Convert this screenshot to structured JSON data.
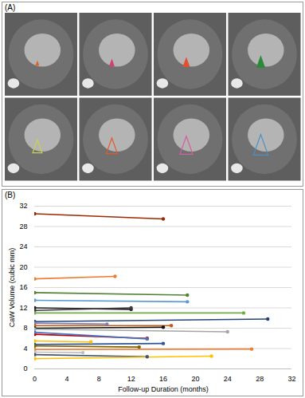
{
  "figure": {
    "panel_a_label": "(A)",
    "panel_b_label": "(B)"
  },
  "chart_data": {
    "type": "line",
    "x_label": "Follow-up Duration (months)",
    "y_label": "CaW Volume (cubic mm)",
    "xlim": [
      0,
      32
    ],
    "xticks": [
      0,
      4,
      8,
      12,
      16,
      20,
      24,
      28,
      32
    ],
    "ylim": [
      0,
      32
    ],
    "yticks": [
      0,
      4,
      8,
      12,
      16,
      20,
      24,
      28,
      32
    ],
    "grid": true,
    "marker": "circle",
    "series": [
      {
        "color": "#9c2a00",
        "x": [
          0,
          16
        ],
        "values": [
          30.5,
          29.5
        ]
      },
      {
        "color": "#ed7d31",
        "x": [
          0,
          10
        ],
        "values": [
          17.7,
          18.2
        ]
      },
      {
        "color": "#548235",
        "x": [
          0,
          19
        ],
        "values": [
          15.0,
          14.5
        ]
      },
      {
        "color": "#5b9bd5",
        "x": [
          0,
          19
        ],
        "values": [
          13.5,
          13.2
        ]
      },
      {
        "color": "#222222",
        "x": [
          0,
          12
        ],
        "values": [
          12.0,
          11.7
        ]
      },
      {
        "color": "#3b3b3b",
        "x": [
          0,
          12
        ],
        "values": [
          11.5,
          12.0
        ]
      },
      {
        "color": "#70ad47",
        "x": [
          0,
          26
        ],
        "values": [
          11.0,
          11.0
        ]
      },
      {
        "color": "#264478",
        "x": [
          0,
          29
        ],
        "values": [
          9.3,
          9.8
        ]
      },
      {
        "color": "#7f7fb0",
        "x": [
          0,
          9
        ],
        "values": [
          9.0,
          8.8
        ]
      },
      {
        "color": "#c55a11",
        "x": [
          0,
          17
        ],
        "values": [
          8.5,
          8.5
        ]
      },
      {
        "color": "#111111",
        "x": [
          0,
          16
        ],
        "values": [
          8.0,
          8.2
        ]
      },
      {
        "color": "#a5a5a5",
        "x": [
          0,
          24
        ],
        "values": [
          7.8,
          7.3
        ]
      },
      {
        "color": "#c00000",
        "x": [
          0,
          14
        ],
        "values": [
          6.8,
          6.0
        ]
      },
      {
        "color": "#4472c4",
        "x": [
          0,
          14
        ],
        "values": [
          7.2,
          5.9
        ]
      },
      {
        "color": "#ffc000",
        "x": [
          0,
          7
        ],
        "values": [
          5.5,
          5.3
        ]
      },
      {
        "color": "#2f5597",
        "x": [
          0,
          16
        ],
        "values": [
          4.8,
          5.0
        ]
      },
      {
        "color": "#7f6000",
        "x": [
          0,
          13
        ],
        "values": [
          4.5,
          4.3
        ]
      },
      {
        "color": "#ed7d31",
        "x": [
          0,
          27
        ],
        "values": [
          3.8,
          3.9
        ]
      },
      {
        "color": "#bfbfbf",
        "x": [
          0,
          6
        ],
        "values": [
          3.3,
          3.2
        ]
      },
      {
        "color": "#44546a",
        "x": [
          0,
          14
        ],
        "values": [
          2.8,
          2.4
        ]
      },
      {
        "color": "#ffc000",
        "x": [
          0,
          22
        ],
        "values": [
          2.0,
          2.5
        ]
      }
    ]
  }
}
